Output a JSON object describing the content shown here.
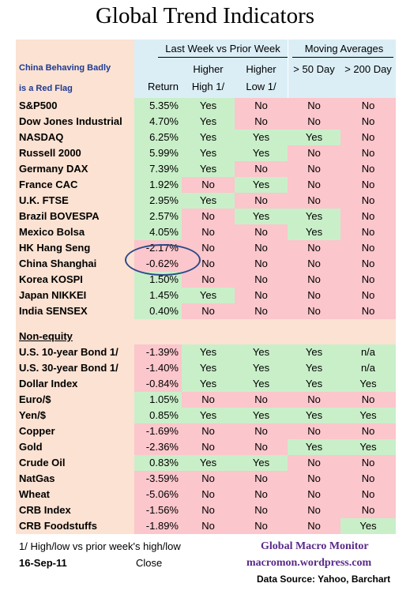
{
  "title": "Global Trend Indicators",
  "header": {
    "group1": "Last Week vs Prior Week",
    "group2": "Moving Averages",
    "note_line1": "China Behaving Badly",
    "note_line2": "is a Red Flag",
    "col_return": "Return",
    "col_high_line1": "Higher",
    "col_high_line2": "High 1/",
    "col_low_line1": "Higher",
    "col_low_line2": "Low 1/",
    "col_50": "> 50 Day",
    "col_200": "> 200 Day"
  },
  "colors": {
    "green": "#c9efc9",
    "red": "#fbc6cc",
    "peach": "#fbe2d2",
    "blue": "#dbeef6",
    "title_navy": "#1f3a93"
  },
  "equities": [
    {
      "name": "S&P500",
      "ret": "5.35%",
      "high": "Yes",
      "low": "No",
      "d50": "No",
      "d200": "No"
    },
    {
      "name": "Dow Jones Industrial",
      "ret": "4.70%",
      "high": "Yes",
      "low": "No",
      "d50": "No",
      "d200": "No"
    },
    {
      "name": "NASDAQ",
      "ret": "6.25%",
      "high": "Yes",
      "low": "Yes",
      "d50": "Yes",
      "d200": "No"
    },
    {
      "name": "Russell 2000",
      "ret": "5.99%",
      "high": "Yes",
      "low": "Yes",
      "d50": "No",
      "d200": "No"
    },
    {
      "name": "Germany DAX",
      "ret": "7.39%",
      "high": "Yes",
      "low": "No",
      "d50": "No",
      "d200": "No"
    },
    {
      "name": "France CAC",
      "ret": "1.92%",
      "high": "No",
      "low": "Yes",
      "d50": "No",
      "d200": "No"
    },
    {
      "name": "U.K. FTSE",
      "ret": "2.95%",
      "high": "Yes",
      "low": "No",
      "d50": "No",
      "d200": "No"
    },
    {
      "name": "Brazil BOVESPA",
      "ret": "2.57%",
      "high": "No",
      "low": "Yes",
      "d50": "Yes",
      "d200": "No"
    },
    {
      "name": "Mexico Bolsa",
      "ret": "4.05%",
      "high": "No",
      "low": "No",
      "d50": "Yes",
      "d200": "No"
    },
    {
      "name": "HK  Hang Seng",
      "ret": "-2.17%",
      "high": "No",
      "low": "No",
      "d50": "No",
      "d200": "No"
    },
    {
      "name": "China Shanghai",
      "ret": "-0.62%",
      "high": "No",
      "low": "No",
      "d50": "No",
      "d200": "No"
    },
    {
      "name": "Korea KOSPI",
      "ret": "1.50%",
      "high": "No",
      "low": "No",
      "d50": "No",
      "d200": "No"
    },
    {
      "name": "Japan NIKKEI",
      "ret": "1.45%",
      "high": "Yes",
      "low": "No",
      "d50": "No",
      "d200": "No"
    },
    {
      "name": "India SENSEX",
      "ret": "0.40%",
      "high": "No",
      "low": "No",
      "d50": "No",
      "d200": "No"
    }
  ],
  "nonequity_label": "Non-equity",
  "nonequity": [
    {
      "name": "U.S. 10-year Bond 1/",
      "ret": "-1.39%",
      "high": "Yes",
      "low": "Yes",
      "d50": "Yes",
      "d200": "n/a"
    },
    {
      "name": "U.S. 30-year Bond 1/",
      "ret": "-1.40%",
      "high": "Yes",
      "low": "Yes",
      "d50": "Yes",
      "d200": "n/a"
    },
    {
      "name": "Dollar Index",
      "ret": "-0.84%",
      "high": "Yes",
      "low": "Yes",
      "d50": "Yes",
      "d200": "Yes"
    },
    {
      "name": "Euro/$",
      "ret": "1.05%",
      "high": "No",
      "low": "No",
      "d50": "No",
      "d200": "No"
    },
    {
      "name": "Yen/$",
      "ret": "0.85%",
      "high": "Yes",
      "low": "Yes",
      "d50": "Yes",
      "d200": "Yes"
    },
    {
      "name": "Copper",
      "ret": "-1.69%",
      "high": "No",
      "low": "No",
      "d50": "No",
      "d200": "No"
    },
    {
      "name": "Gold",
      "ret": "-2.36%",
      "high": "No",
      "low": "No",
      "d50": "Yes",
      "d200": "Yes"
    },
    {
      "name": "Crude Oil",
      "ret": "0.83%",
      "high": "Yes",
      "low": "Yes",
      "d50": "No",
      "d200": "No"
    },
    {
      "name": "NatGas",
      "ret": "-3.59%",
      "high": "No",
      "low": "No",
      "d50": "No",
      "d200": "No"
    },
    {
      "name": "Wheat",
      "ret": "-5.06%",
      "high": "No",
      "low": "No",
      "d50": "No",
      "d200": "No"
    },
    {
      "name": "CRB Index",
      "ret": "-1.56%",
      "high": "No",
      "low": "No",
      "d50": "No",
      "d200": "No"
    },
    {
      "name": "CRB Foodstuffs",
      "ret": "-1.89%",
      "high": "No",
      "low": "No",
      "d50": "No",
      "d200": "Yes"
    }
  ],
  "footer": {
    "footnote": "1/  High/low vs prior week's high/low",
    "date": "16-Sep-11",
    "close": "Close",
    "brand": "Global Macro Monitor",
    "site": "macromon.wordpress.com",
    "source": "Data Source: Yahoo, Barchart"
  }
}
